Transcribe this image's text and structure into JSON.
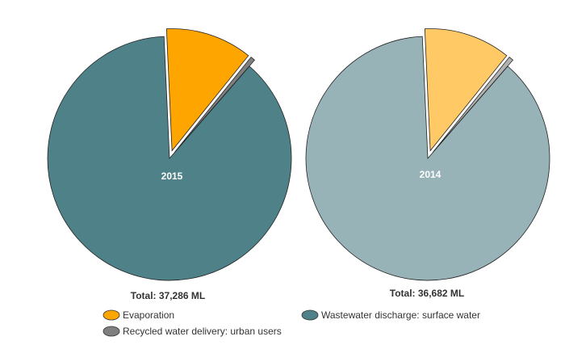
{
  "chart_data": [
    {
      "type": "pie",
      "label": "2015",
      "total_text": "Total: 37,286 ML",
      "slices": [
        {
          "category": "Evaporation",
          "value": 11.5,
          "exploded": true
        },
        {
          "category": "Recycled water delivery: urban users",
          "value": 0.6,
          "exploded": true
        },
        {
          "category": "Wastewater discharge: surface water",
          "value": 87.9,
          "exploded": false
        }
      ],
      "colors": [
        "#ffa500",
        "#7f7f7f",
        "#4e8188"
      ]
    },
    {
      "type": "pie",
      "label": "2014",
      "total_text": "Total: 36,682 ML",
      "slices": [
        {
          "category": "Evaporation",
          "value": 11.5,
          "exploded": true
        },
        {
          "category": "Recycled water delivery: urban users",
          "value": 0.6,
          "exploded": true
        },
        {
          "category": "Wastewater discharge: surface water",
          "value": 87.9,
          "exploded": false
        }
      ],
      "colors": [
        "#ffc966",
        "#b2b2b2",
        "#97b3b8"
      ]
    }
  ],
  "legend": [
    {
      "label": "Evaporation",
      "color": "#ffa500"
    },
    {
      "label": "Wastewater discharge: surface water",
      "color": "#4e8188"
    },
    {
      "label": "Recycled water delivery: urban users",
      "color": "#7f7f7f"
    }
  ]
}
